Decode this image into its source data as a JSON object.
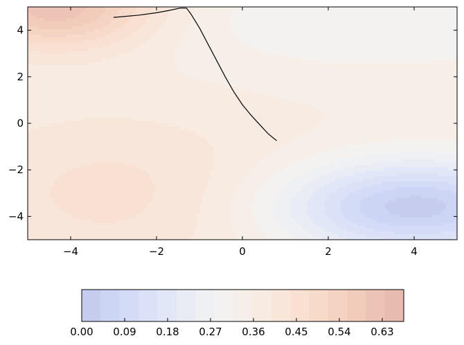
{
  "chart_data": [
    {
      "type": "heatmap",
      "title": "",
      "xlabel": "",
      "ylabel": "",
      "xlim": [
        -5,
        5
      ],
      "ylim": [
        -5,
        5
      ],
      "xticks": [
        "−4",
        "−2",
        "0",
        "2",
        "4"
      ],
      "xtick_values": [
        -4,
        -2,
        0,
        2,
        4
      ],
      "yticks": [
        "4",
        "2",
        "0",
        "−2",
        "−4"
      ],
      "ytick_values": [
        4,
        2,
        0,
        -2,
        -4
      ],
      "grid": false,
      "colormap": "coolwarm",
      "contour_levels": 20,
      "path": {
        "color": "#000000",
        "x": [
          -3.0,
          -2.4,
          -2.0,
          -1.7,
          -1.45,
          -1.3,
          -1.2,
          -1.0,
          -0.8,
          -0.6,
          -0.4,
          -0.2,
          0.0,
          0.2,
          0.4,
          0.6,
          0.8
        ],
        "y": [
          4.55,
          4.65,
          4.75,
          4.85,
          4.95,
          4.95,
          4.7,
          4.1,
          3.4,
          2.7,
          2.0,
          1.35,
          0.8,
          0.35,
          -0.05,
          -0.45,
          -0.75
        ]
      }
    },
    {
      "type": "colorbar",
      "vmin": 0.0,
      "vmax": 0.675,
      "tick_values": [
        0.0,
        0.09,
        0.18,
        0.27,
        0.36,
        0.45,
        0.54,
        0.63
      ],
      "tick_labels": [
        "0.00",
        "0.09",
        "0.18",
        "0.27",
        "0.36",
        "0.45",
        "0.54",
        "0.63"
      ],
      "bands": [
        "#c5ccee",
        "#ccd5f3",
        "#d4dbf6",
        "#dbe1f7",
        "#e2e7f7",
        "#e9ecf5",
        "#eff0f3",
        "#f3f2f0",
        "#f6efe9",
        "#f8ebe2",
        "#f9e6da",
        "#f8e0d2",
        "#f7dac9",
        "#f5d3c2",
        "#f1ccbb",
        "#ecc3b6",
        "#e8bbb1"
      ]
    }
  ]
}
